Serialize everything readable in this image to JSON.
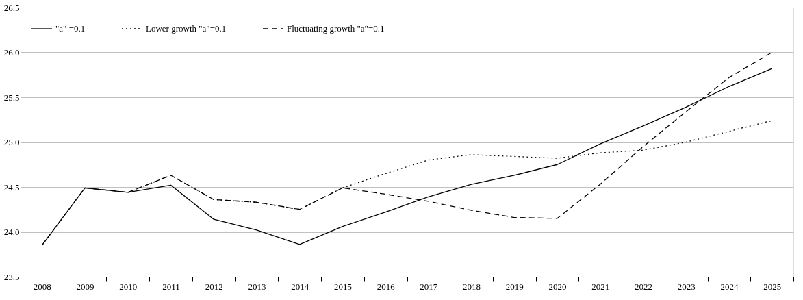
{
  "chart_data": {
    "type": "line",
    "categories": [
      "2008",
      "2009",
      "2010",
      "2011",
      "2012",
      "2013",
      "2014",
      "2015",
      "2016",
      "2017",
      "2018",
      "2019",
      "2020",
      "2021",
      "2022",
      "2023",
      "2024",
      "2025"
    ],
    "series": [
      {
        "name": "\"a\" =0.1",
        "color": "#000000",
        "line_style": "solid",
        "values": [
          23.85,
          24.49,
          24.44,
          24.52,
          24.14,
          24.02,
          23.86,
          24.06,
          24.22,
          24.39,
          24.53,
          24.63,
          24.75,
          24.98,
          25.18,
          25.39,
          25.62,
          25.82
        ]
      },
      {
        "name": "Lower growth \"a\"=0.1",
        "color": "#000000",
        "line_style": "dotted",
        "values": [
          null,
          null,
          24.44,
          24.63,
          24.36,
          24.33,
          24.25,
          24.49,
          24.65,
          24.8,
          24.86,
          24.84,
          24.82,
          24.88,
          24.91,
          25.0,
          25.12,
          25.24
        ]
      },
      {
        "name": "Fluctuating growth \"a\"=0.1",
        "color": "#000000",
        "line_style": "dashed",
        "values": [
          23.85,
          24.49,
          24.44,
          24.63,
          24.36,
          24.33,
          24.25,
          24.49,
          24.42,
          24.34,
          24.24,
          24.16,
          24.15,
          24.53,
          24.95,
          25.34,
          25.72,
          26.0
        ]
      }
    ],
    "ylim": [
      23.5,
      26.5
    ],
    "yticks": [
      {
        "value": 23.5,
        "label": "23.5"
      },
      {
        "value": 24.0,
        "label": "24.0"
      },
      {
        "value": 24.5,
        "label": "24.5"
      },
      {
        "value": 25.0,
        "label": "25.0"
      },
      {
        "value": 25.5,
        "label": "25.5"
      },
      {
        "value": 26.0,
        "label": "26.0"
      },
      {
        "value": 26.5,
        "label": "26.5"
      }
    ],
    "grid": "y",
    "legend": "top left",
    "marker": "none"
  }
}
